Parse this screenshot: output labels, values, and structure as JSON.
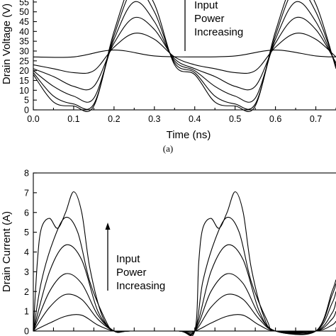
{
  "panels": [
    {
      "caption": "(a)",
      "chart_data": {
        "type": "line",
        "title": "",
        "xlabel": "Time (ns)",
        "ylabel": "Drain Voltage (V)",
        "xlim": [
          0.0,
          0.75
        ],
        "ylim": [
          0,
          60
        ],
        "xticks": [
          "0.0",
          "0.1",
          "0.2",
          "0.3",
          "0.4",
          "0.5",
          "0.6",
          "0.7"
        ],
        "yticks": [
          "0",
          "5",
          "10",
          "15",
          "20",
          "25",
          "30",
          "35",
          "40",
          "45",
          "50",
          "55"
        ],
        "annotation": [
          "Input",
          "Power",
          "Increasing"
        ],
        "grid": false,
        "legend": "none",
        "series": [
          {
            "x": [
              0.0,
              0.1,
              0.2,
              0.3,
              0.4,
              0.5,
              0.6,
              0.7,
              0.75
            ],
            "y": [
              27,
              27,
              30.5,
              27.5,
              27,
              27.5,
              30.5,
              27.5,
              27
            ]
          },
          {
            "x": [
              0.0,
              0.05,
              0.1,
              0.15,
              0.2,
              0.25,
              0.3,
              0.35,
              0.4,
              0.45,
              0.5,
              0.55,
              0.6,
              0.65,
              0.7,
              0.75
            ],
            "y": [
              23,
              21,
              19,
              20,
              32,
              39,
              36,
              27,
              23,
              21,
              19,
              20,
              32,
              39,
              36,
              27
            ]
          },
          {
            "x": [
              0.0,
              0.05,
              0.1,
              0.15,
              0.2,
              0.25,
              0.3,
              0.35,
              0.4,
              0.45,
              0.5,
              0.55,
              0.6,
              0.65,
              0.7,
              0.75
            ],
            "y": [
              21,
              17,
              12,
              12,
              34,
              47,
              41,
              26,
              21,
              17,
              12,
              12,
              34,
              47,
              41,
              24
            ]
          },
          {
            "x": [
              0.0,
              0.05,
              0.1,
              0.15,
              0.2,
              0.25,
              0.3,
              0.35,
              0.4,
              0.45,
              0.5,
              0.55,
              0.6,
              0.65,
              0.7,
              0.75
            ],
            "y": [
              20,
              12,
              7,
              6,
              36,
              55,
              45,
              25,
              20,
              12,
              7,
              6,
              36,
              55,
              45,
              23
            ]
          },
          {
            "x": [
              0.0,
              0.05,
              0.1,
              0.15,
              0.2,
              0.25,
              0.3,
              0.35,
              0.4,
              0.45,
              0.5,
              0.55,
              0.6,
              0.65,
              0.7,
              0.75
            ],
            "y": [
              19,
              7,
              3,
              3,
              38,
              62,
              50,
              24,
              19,
              7,
              3,
              3,
              38,
              62,
              50,
              22
            ]
          },
          {
            "x": [
              0.0,
              0.05,
              0.1,
              0.15,
              0.2,
              0.25,
              0.3,
              0.35,
              0.4,
              0.45,
              0.5,
              0.55,
              0.6,
              0.65,
              0.7,
              0.75
            ],
            "y": [
              18,
              4,
              2,
              2,
              40,
              66,
              54,
              23,
              18,
              4,
              2,
              2,
              40,
              66,
              54,
              21
            ]
          }
        ]
      }
    },
    {
      "caption": "",
      "chart_data": {
        "type": "line",
        "title": "",
        "xlabel": "",
        "ylabel": "Drain Current (A)",
        "xlim": [
          0.0,
          0.75
        ],
        "ylim": [
          0,
          8
        ],
        "xticks": [],
        "yticks": [
          "0",
          "1",
          "2",
          "3",
          "4",
          "5",
          "6",
          "7",
          "8"
        ],
        "annotation": [
          "Input",
          "Power",
          "Increasing"
        ],
        "grid": false,
        "legend": "none",
        "series": [
          {
            "x": [
              0.0,
              0.04,
              0.08,
              0.12,
              0.16,
              0.2,
              0.24,
              0.36,
              0.4,
              0.44,
              0.48,
              0.52,
              0.56,
              0.6,
              0.7,
              0.74,
              0.75
            ],
            "y": [
              0,
              0.4,
              0.75,
              0.8,
              0.3,
              0,
              0,
              0,
              0,
              0.4,
              0.75,
              0.8,
              0.3,
              0,
              0,
              0.3,
              0.5
            ]
          },
          {
            "x": [
              0.0,
              0.04,
              0.08,
              0.12,
              0.16,
              0.2,
              0.24,
              0.36,
              0.4,
              0.44,
              0.48,
              0.52,
              0.56,
              0.6,
              0.7,
              0.74,
              0.75
            ],
            "y": [
              0,
              1.2,
              1.85,
              1.6,
              0.6,
              0,
              0,
              0,
              0,
              1.2,
              1.85,
              1.6,
              0.6,
              0,
              0,
              0.6,
              1.0
            ]
          },
          {
            "x": [
              0.0,
              0.04,
              0.08,
              0.12,
              0.16,
              0.2,
              0.24,
              0.36,
              0.4,
              0.44,
              0.48,
              0.52,
              0.56,
              0.6,
              0.7,
              0.74,
              0.75
            ],
            "y": [
              0,
              2.0,
              2.9,
              2.4,
              0.8,
              0,
              0,
              0,
              0,
              2.0,
              2.9,
              2.4,
              0.8,
              0,
              0,
              0.9,
              1.5
            ]
          },
          {
            "x": [
              0.0,
              0.04,
              0.08,
              0.12,
              0.16,
              0.2,
              0.24,
              0.36,
              0.4,
              0.44,
              0.48,
              0.52,
              0.56,
              0.6,
              0.7,
              0.74,
              0.75
            ],
            "y": [
              0,
              3.0,
              4.35,
              3.6,
              1.0,
              0,
              0,
              0,
              0,
              3.0,
              4.35,
              3.6,
              1.0,
              0,
              0,
              1.4,
              2.0
            ]
          },
          {
            "x": [
              0.0,
              0.02,
              0.05,
              0.08,
              0.11,
              0.14,
              0.18,
              0.2,
              0.24,
              0.36,
              0.4,
              0.42,
              0.45,
              0.48,
              0.51,
              0.54,
              0.58,
              0.6,
              0.7,
              0.74,
              0.75
            ],
            "y": [
              0,
              2.5,
              4.6,
              5.75,
              5.0,
              2.5,
              0.5,
              0,
              0,
              0,
              0,
              2.5,
              4.6,
              5.75,
              5.0,
              2.5,
              0.5,
              0,
              0,
              1.8,
              2.4
            ]
          },
          {
            "x": [
              0.0,
              0.01,
              0.02,
              0.04,
              0.06,
              0.08,
              0.1,
              0.12,
              0.14,
              0.17,
              0.2,
              0.24,
              0.36,
              0.4,
              0.41,
              0.42,
              0.44,
              0.46,
              0.48,
              0.5,
              0.52,
              0.54,
              0.57,
              0.6,
              0.7,
              0.74,
              0.75
            ],
            "y": [
              0,
              3.5,
              5.2,
              5.7,
              5.2,
              6.0,
              7.05,
              6.0,
              3.2,
              0.8,
              0,
              0,
              0,
              0,
              3.5,
              5.2,
              5.7,
              5.2,
              6.0,
              7.05,
              6.0,
              3.2,
              0.8,
              0,
              0,
              2.0,
              2.6
            ]
          }
        ]
      }
    }
  ]
}
